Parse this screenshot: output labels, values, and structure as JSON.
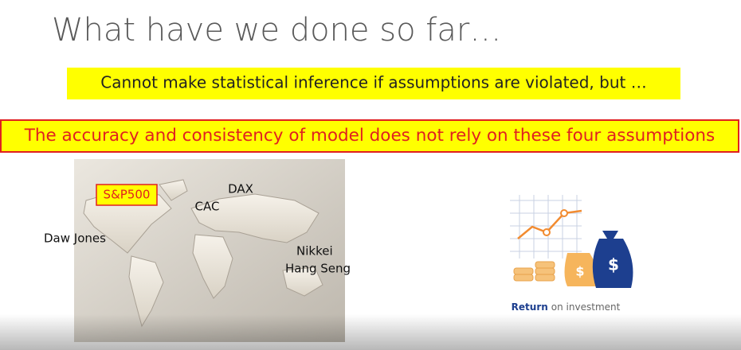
{
  "slide": {
    "title": "What have we done so far…",
    "callout_1": "Cannot make statistical inference if assumptions are violated, but …",
    "callout_2": "The accuracy and consistency of model does not rely on these four assumptions",
    "map_labels": [
      "S&P500",
      "CAC",
      "DAX",
      "Daw Jones",
      "Nikkei",
      "Hang Seng"
    ],
    "icon_caption": {
      "bold": "Return",
      "rest": "on investment"
    }
  }
}
